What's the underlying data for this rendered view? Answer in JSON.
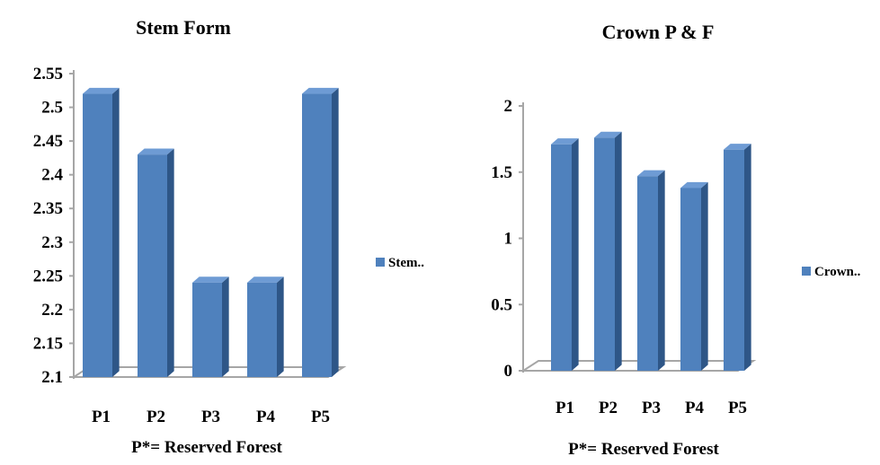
{
  "chart_data": [
    {
      "type": "bar",
      "title": "Stem Form",
      "xlabel": "P*= Reserved Forest",
      "ylabel": "",
      "categories": [
        "P1",
        "P2",
        "P3",
        "P4",
        "P5"
      ],
      "yticks": [
        "2.1",
        "2.15",
        "2.2",
        "2.25",
        "2.3",
        "2.35",
        "2.4",
        "2.45",
        "2.5",
        "2.55"
      ],
      "ylim": [
        2.1,
        2.55
      ],
      "series": [
        {
          "name": "Stem..",
          "values": [
            2.52,
            2.43,
            2.24,
            2.24,
            2.52
          ]
        }
      ],
      "legend": "right",
      "style": "3d-column",
      "colors": {
        "bar_front": "#4f81bd",
        "bar_side": "#2e5687",
        "bar_top": "#6e9bd4",
        "axis": "#a6a6a6"
      }
    },
    {
      "type": "bar",
      "title": "Crown P & F",
      "xlabel": "P*= Reserved Forest",
      "ylabel": "",
      "categories": [
        "P1",
        "P2",
        "P3",
        "P4",
        "P5"
      ],
      "yticks": [
        "0",
        "0.5",
        "1",
        "1.5",
        "2"
      ],
      "ylim": [
        0,
        2
      ],
      "series": [
        {
          "name": "Crown..",
          "values": [
            1.71,
            1.76,
            1.47,
            1.38,
            1.67
          ]
        }
      ],
      "legend": "right",
      "style": "3d-column",
      "colors": {
        "bar_front": "#4f81bd",
        "bar_side": "#2e5687",
        "bar_top": "#6e9bd4",
        "axis": "#a6a6a6"
      }
    }
  ]
}
